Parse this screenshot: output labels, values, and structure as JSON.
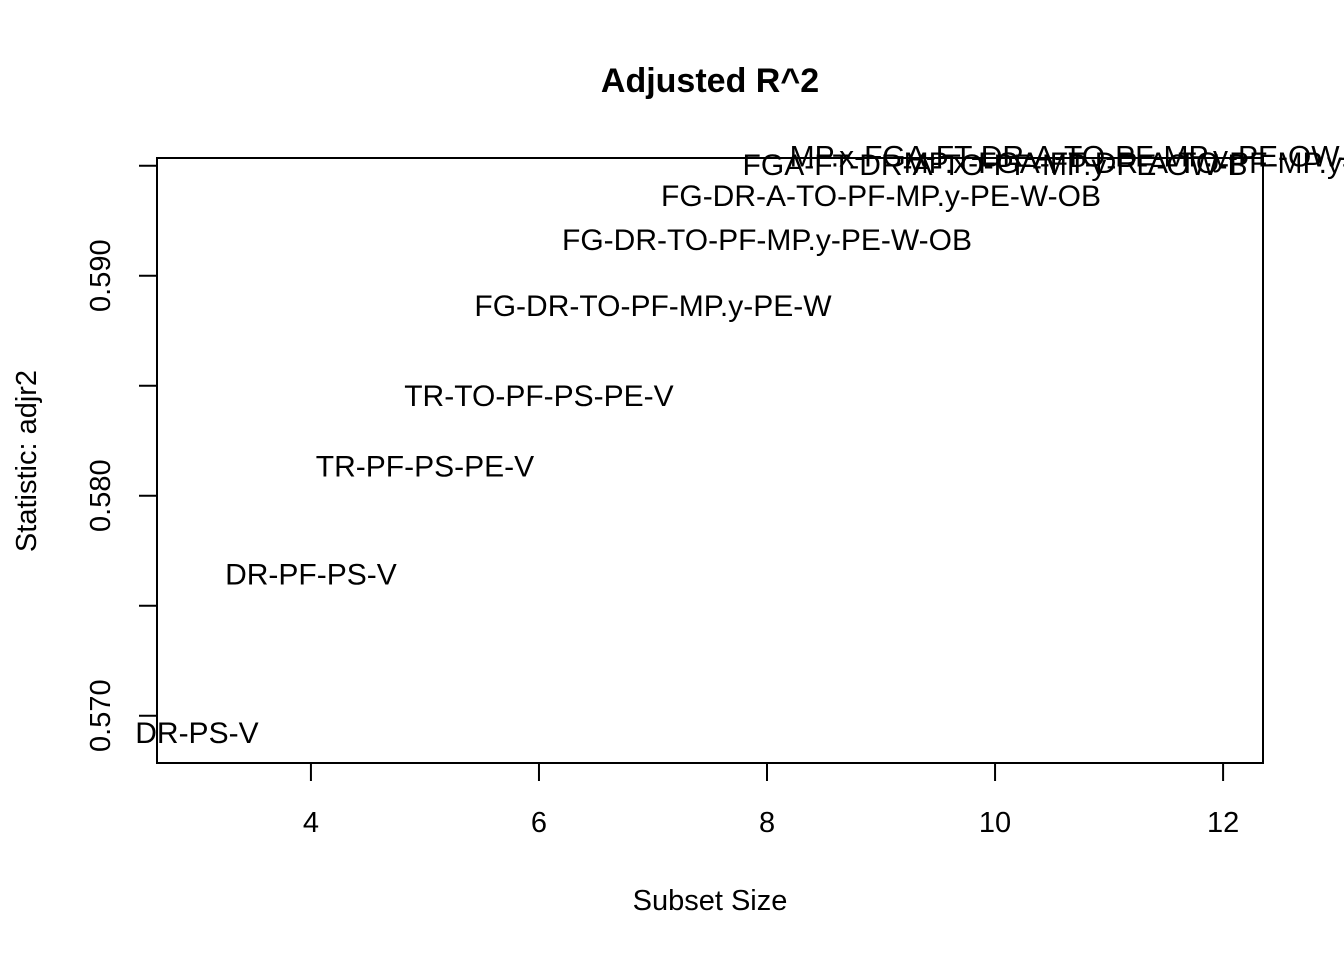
{
  "chart_data": {
    "type": "scatter",
    "title": "Adjusted R^2",
    "xlabel": "Subset Size",
    "ylabel": "Statistic: adjr2",
    "xlim": [
      2.65,
      12.35
    ],
    "ylim": [
      0.56785,
      0.59535
    ],
    "x_ticks": [
      4,
      6,
      8,
      10,
      12
    ],
    "x_tick_labels": [
      "4",
      "6",
      "8",
      "10",
      "12"
    ],
    "y_ticks": [
      0.57,
      0.575,
      0.58,
      0.585,
      0.59,
      0.595
    ],
    "y_tick_labels": [
      "0.570",
      "",
      "0.580",
      "",
      "0.590",
      ""
    ],
    "grid": false,
    "legend": "none",
    "points": [
      {
        "x": 3,
        "y": 0.5692,
        "label": "DR-PS-V"
      },
      {
        "x": 4,
        "y": 0.5764,
        "label": "DR-PF-PS-V"
      },
      {
        "x": 5,
        "y": 0.5813,
        "label": "TR-PF-PS-PE-V"
      },
      {
        "x": 6,
        "y": 0.5845,
        "label": "TR-TO-PF-PS-PE-V"
      },
      {
        "x": 7,
        "y": 0.5886,
        "label": "FG-DR-TO-PF-MP.y-PE-W"
      },
      {
        "x": 8,
        "y": 0.5916,
        "label": "FG-DR-TO-PF-MP.y-PE-W-OB"
      },
      {
        "x": 9,
        "y": 0.5936,
        "label": "FG-DR-A-TO-PF-MP.y-PE-W-OB"
      },
      {
        "x": 10,
        "y": 0.595,
        "label": "FGA-FT-DR-A-TO-PF-MP.y-PE-OW-B"
      },
      {
        "x": 11,
        "y": 0.5954,
        "label": "MP.x-FGA-FT-DR-A-TO-PF-MP.y-PE-OW-DW-B"
      },
      {
        "x": 12,
        "y": 0.5951,
        "label": "MP.x-FGA-FT-DR-A-TO-PF-MP.y-PE-OW-DW-B"
      }
    ]
  }
}
